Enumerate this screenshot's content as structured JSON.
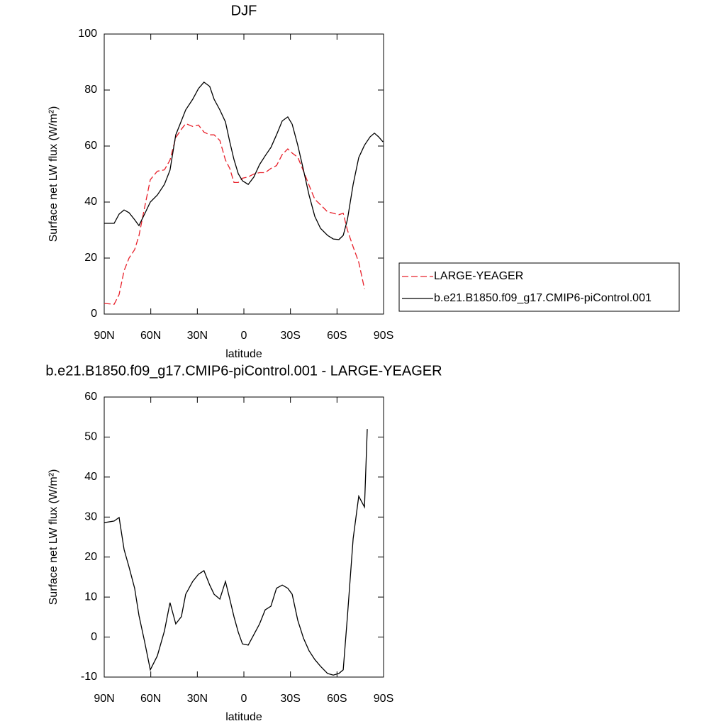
{
  "chart_data": [
    {
      "type": "line",
      "title": "DJF",
      "x_label": "latitude",
      "y_label": "Surface net LW flux (W/m²)",
      "x": [
        90,
        83.6,
        80.4,
        77.2,
        74,
        70.4,
        67.6,
        64,
        60.3,
        55.8,
        51.2,
        47.6,
        43.9,
        40.3,
        37.5,
        33,
        29.3,
        25.7,
        22,
        19.2,
        15.5,
        11.9,
        9.1,
        6.4,
        3.6,
        0.9,
        -2.8,
        -6.4,
        -10.1,
        -13.7,
        -17.4,
        -21,
        -24.7,
        -28.3,
        -31.1,
        -34.7,
        -38.4,
        -42,
        -45.7,
        -49.4,
        -53.9,
        -57.6,
        -61.2,
        -64,
        -66.7,
        -70.4,
        -74,
        -77.7,
        -81.3,
        -84.1,
        -86.8,
        -89.6
      ],
      "series": [
        {
          "name": "LARGE-YEAGER",
          "color": "#e8202a",
          "style": "dashed",
          "values": [
            3.8,
            3.5,
            7,
            15.5,
            20,
            23,
            28,
            38,
            48,
            51,
            51.5,
            55,
            63,
            66,
            68,
            67,
            67.5,
            65,
            64,
            64,
            62,
            55,
            52,
            47,
            47,
            48.5,
            49,
            50,
            50.5,
            50.5,
            52,
            53,
            57,
            59,
            57.5,
            56,
            51,
            46,
            41,
            39,
            36.5,
            36,
            35.5,
            36,
            30,
            24,
            18.5,
            9,
            null,
            null,
            null,
            null
          ]
        },
        {
          "name": "b.e21.B1850.f09_g17.CMIP6-piControl.001",
          "color": "#000000",
          "style": "solid",
          "values": [
            32.4,
            32.4,
            35.7,
            37.2,
            36.2,
            33.7,
            31.6,
            35.7,
            40,
            42.5,
            46.3,
            51.4,
            64,
            69,
            72.9,
            76.7,
            80.5,
            82.8,
            81.3,
            76.7,
            72.9,
            68.6,
            61.5,
            55.2,
            50.1,
            47.6,
            46.3,
            48.9,
            53.4,
            56.5,
            59.5,
            64,
            69,
            70.4,
            67.8,
            60.3,
            51.4,
            42.5,
            34.9,
            30.6,
            28.1,
            26.8,
            26.6,
            28.1,
            33.7,
            46.3,
            55.9,
            60.3,
            63.3,
            64.6,
            63.3,
            61.5
          ]
        }
      ],
      "xlim": [
        90,
        -90
      ],
      "xticks": [
        {
          "value": 90,
          "label": "90N"
        },
        {
          "value": 60,
          "label": "60N"
        },
        {
          "value": 30,
          "label": "30N"
        },
        0,
        {
          "value": -30,
          "label": "30S"
        },
        {
          "value": -60,
          "label": "60S"
        },
        {
          "value": -90,
          "label": "90S"
        }
      ],
      "ylim": [
        0,
        100
      ],
      "yticks": [
        0,
        20,
        40,
        60,
        80,
        100
      ],
      "legend": "right"
    },
    {
      "type": "line",
      "title": "b.e21.B1850.f09_g17.CMIP6-piControl.001 - LARGE-YEAGER",
      "x_label": "latitude",
      "y_label": "Surface net LW flux (W/m²)",
      "x": [
        90,
        83.6,
        80.4,
        77.2,
        74,
        70.4,
        67.6,
        64,
        60.3,
        55.8,
        51.2,
        47.6,
        43.9,
        40.3,
        37.5,
        33,
        29.3,
        25.7,
        22,
        19.2,
        15.5,
        11.9,
        9.1,
        6.4,
        3.6,
        0.9,
        -2.8,
        -6.4,
        -10.1,
        -13.7,
        -17.4,
        -21,
        -24.7,
        -28.3,
        -31.1,
        -34.7,
        -38.4,
        -42,
        -45.7,
        -49.4,
        -53.9,
        -57.6,
        -61.2,
        -64,
        -66.7,
        -70.4,
        -74,
        -77.7,
        -79.5
      ],
      "values": [
        28.6,
        29,
        29.9,
        21.9,
        17.5,
        12.2,
        5.4,
        -1.1,
        -8.2,
        -4.7,
        1.5,
        8.6,
        3.3,
        5.1,
        10.7,
        13.9,
        15.7,
        16.6,
        13,
        10.7,
        9.5,
        13.9,
        9.5,
        5.1,
        1.2,
        -1.7,
        -2,
        0.6,
        3.3,
        6.8,
        7.7,
        12.2,
        13,
        12.2,
        10.7,
        4.2,
        -0.3,
        -3.4,
        -5.6,
        -7.3,
        -9.1,
        -9.5,
        -9.1,
        -8.2,
        5.1,
        24.6,
        35.2,
        32.5,
        52
      ],
      "color": "#000000",
      "xlim": [
        90,
        -90
      ],
      "xticks": [
        {
          "value": 90,
          "label": "90N"
        },
        {
          "value": 60,
          "label": "60N"
        },
        {
          "value": 30,
          "label": "30N"
        },
        0,
        {
          "value": -30,
          "label": "30S"
        },
        {
          "value": -60,
          "label": "60S"
        },
        {
          "value": -90,
          "label": "90S"
        }
      ],
      "ylim": [
        -10,
        60
      ],
      "yticks": [
        -10,
        0,
        10,
        20,
        30,
        40,
        50,
        60
      ]
    }
  ]
}
